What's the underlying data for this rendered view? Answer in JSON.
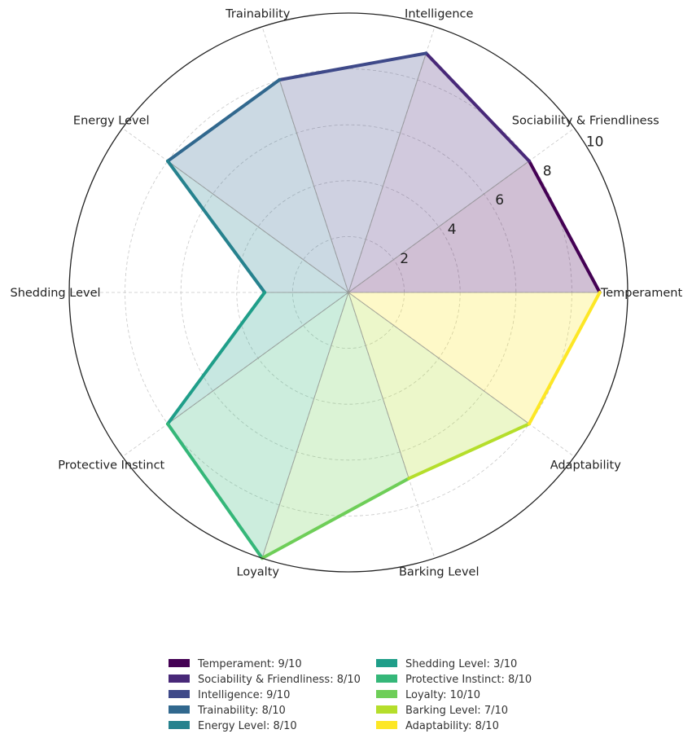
{
  "chart_data": {
    "type": "radar",
    "categories": [
      "Temperament",
      "Sociability & Friendliness",
      "Intelligence",
      "Trainability",
      "Energy Level",
      "Shedding Level",
      "Protective Instinct",
      "Loyalty",
      "Barking Level",
      "Adaptability"
    ],
    "values": [
      9,
      8,
      9,
      8,
      8,
      3,
      8,
      10,
      7,
      8
    ],
    "rlim": [
      0,
      10
    ],
    "rticks": [
      "2",
      "4",
      "6",
      "8",
      "10"
    ],
    "grid": true,
    "colormap": "viridis",
    "colors": [
      "#440154",
      "#482878",
      "#3e4989",
      "#31688e",
      "#26828e",
      "#1f9e89",
      "#35b779",
      "#6ece58",
      "#b5de2b",
      "#fde725"
    ],
    "legend": {
      "placement": "bottom",
      "entries": [
        "Temperament: 9/10",
        "Sociability & Friendliness: 8/10",
        "Intelligence: 9/10",
        "Trainability: 8/10",
        "Energy Level: 8/10",
        "Shedding Level: 3/10",
        "Protective Instinct: 8/10",
        "Loyalty: 10/10",
        "Barking Level: 7/10",
        "Adaptability: 8/10"
      ]
    }
  }
}
